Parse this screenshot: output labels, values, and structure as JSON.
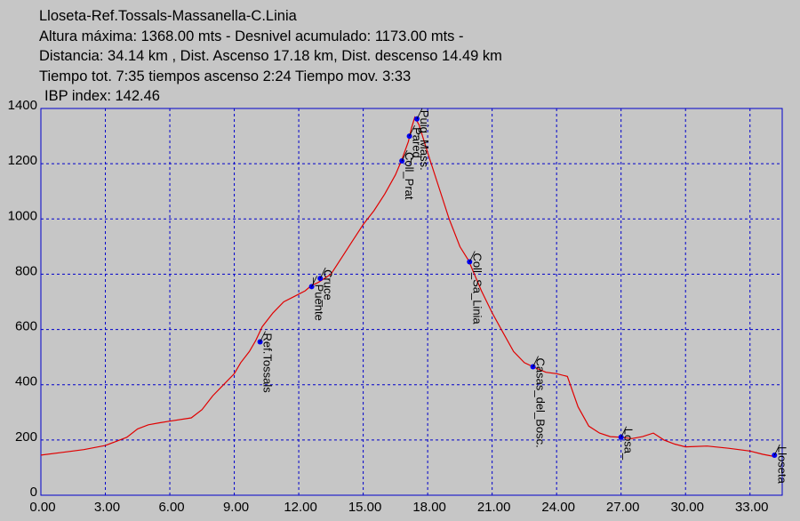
{
  "header": {
    "line1": "Lloseta-Ref.Tossals-Massanella-C.Linia",
    "line2": "Altura máxima: 1368.00 mts -  Desnivel acumulado: 1173.00 mts -",
    "line3": "Distancia: 34.14 km , Dist. Ascenso 17.18 km,  Dist. descenso 14.49 km",
    "line4": "Tiempo tot. 7:35    tiempos ascenso 2:24 Tiempo mov. 3:33",
    "line5": "IBP index: 142.46"
  },
  "colors": {
    "background": "#c6c6c6",
    "frame": "#0000cc",
    "grid": "#0000cc",
    "profile": "#e00000",
    "waypoint": "#0000ee"
  },
  "chart_data": {
    "type": "line",
    "xlim": [
      0,
      34.5
    ],
    "ylim": [
      0,
      1400
    ],
    "x_ticks": [
      "0.00",
      "3.00",
      "6.00",
      "9.00",
      "12.00",
      "15.00",
      "18.00",
      "21.00",
      "24.00",
      "27.00",
      "30.00",
      "33.00"
    ],
    "x_tick_values": [
      0,
      3,
      6,
      9,
      12,
      15,
      18,
      21,
      24,
      27,
      30,
      33
    ],
    "y_ticks": [
      "0",
      "200",
      "400",
      "600",
      "800",
      "1000",
      "1200",
      "1400"
    ],
    "y_tick_values": [
      0,
      200,
      400,
      600,
      800,
      1000,
      1200,
      1400
    ],
    "grid": true,
    "series": [
      {
        "x": [
          0,
          1,
          2,
          3,
          4,
          4.5,
          5,
          5.5,
          6,
          7,
          7.5,
          8,
          8.5,
          9,
          9.3,
          9.7,
          10,
          10.3,
          10.8,
          11.3,
          11.8,
          12.3,
          12.6,
          12.9,
          13.2,
          13.5,
          14,
          14.5,
          15,
          15.5,
          16,
          16.5,
          16.8,
          17.1,
          17.25,
          17.4,
          17.6,
          18,
          18.5,
          19,
          19.5,
          19.9,
          20.5,
          21,
          21.5,
          22,
          22.5,
          22.9,
          23.5,
          24,
          24.5,
          25,
          25.5,
          26,
          26.5,
          27,
          27.5,
          28,
          28.5,
          29,
          29.5,
          30,
          31,
          32,
          33,
          33.6,
          34.14
        ],
        "y": [
          145,
          155,
          165,
          180,
          210,
          240,
          255,
          262,
          268,
          280,
          310,
          360,
          400,
          440,
          480,
          520,
          560,
          610,
          660,
          700,
          720,
          740,
          760,
          770,
          785,
          800,
          860,
          920,
          980,
          1030,
          1090,
          1160,
          1215,
          1280,
          1330,
          1368,
          1340,
          1240,
          1120,
          1000,
          900,
          850,
          740,
          660,
          590,
          520,
          480,
          465,
          445,
          440,
          430,
          320,
          250,
          225,
          212,
          210,
          205,
          212,
          225,
          200,
          185,
          175,
          178,
          170,
          160,
          148,
          140
        ]
      }
    ],
    "waypoints": [
      {
        "name": "Ref.Tossals",
        "x": 10.2,
        "y": 555
      },
      {
        "name": "_Puente",
        "x": 12.6,
        "y": 755
      },
      {
        "name": "Cruce_",
        "x": 13.0,
        "y": 785
      },
      {
        "name": "Coll_Prat",
        "x": 16.8,
        "y": 1210
      },
      {
        "name": "Pared_",
        "x": 17.15,
        "y": 1300
      },
      {
        "name": "Puig_Mass.",
        "x": 17.5,
        "y": 1362
      },
      {
        "name": "Coll_Sa_Linia",
        "x": 19.95,
        "y": 845
      },
      {
        "name": "Casas_del_Bosc.",
        "x": 22.9,
        "y": 465
      },
      {
        "name": "Losa_",
        "x": 27.0,
        "y": 210
      },
      {
        "name": "Lloseta",
        "x": 34.14,
        "y": 145
      }
    ]
  }
}
